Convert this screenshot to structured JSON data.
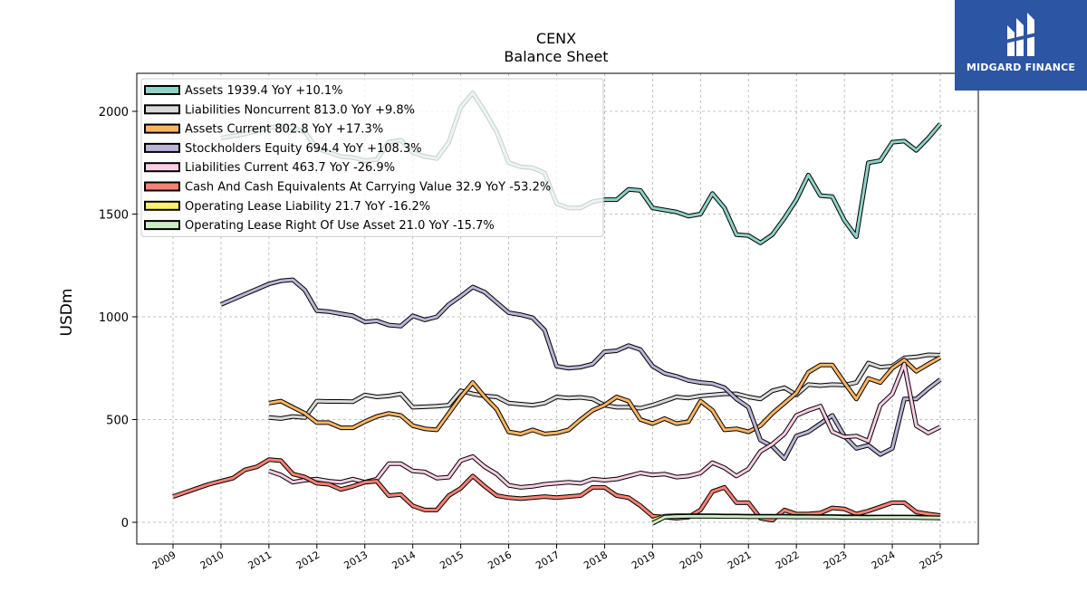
{
  "brand": {
    "name": "MIDGARD FINANCE",
    "bg_color": "#2c55a4"
  },
  "chart_data": {
    "type": "line",
    "title": "CENX",
    "subtitle": "Balance  Sheet",
    "ylabel": "USDm",
    "xlabel": "",
    "ylim": [
      -100,
      2200
    ],
    "xlim": [
      2008.25,
      2025.8
    ],
    "yticks": [
      0,
      500,
      1000,
      1500,
      2000
    ],
    "xticks": [
      2009,
      2010,
      2011,
      2012,
      2013,
      2014,
      2015,
      2016,
      2017,
      2018,
      2019,
      2020,
      2021,
      2022,
      2023,
      2024,
      2025
    ],
    "grid": true,
    "legend_position": "top-left",
    "series": [
      {
        "name": "Assets",
        "label": "Assets  1939.4 YoY +10.1%",
        "color": "#8dd3c7",
        "x": [
          2010.0,
          2010.25,
          2010.5,
          2010.75,
          2011.0,
          2011.25,
          2011.5,
          2011.75,
          2012.0,
          2012.25,
          2012.5,
          2012.75,
          2013.0,
          2013.25,
          2013.5,
          2013.75,
          2014.0,
          2014.25,
          2014.5,
          2014.75,
          2015.0,
          2015.25,
          2015.5,
          2015.75,
          2016.0,
          2016.25,
          2016.5,
          2016.75,
          2017.0,
          2017.25,
          2017.5,
          2017.75,
          2018.0,
          2018.25,
          2018.5,
          2018.75,
          2019.0,
          2019.25,
          2019.5,
          2019.75,
          2020.0,
          2020.25,
          2020.5,
          2020.75,
          2021.0,
          2021.25,
          2021.5,
          2021.75,
          2022.0,
          2022.25,
          2022.5,
          2022.75,
          2023.0,
          2023.25,
          2023.5,
          2023.75,
          2024.0,
          2024.25,
          2024.5,
          2024.75,
          2025.0
        ],
        "y": [
          1870,
          1880,
          1890,
          1905,
          1920,
          1930,
          1920,
          1900,
          1820,
          1800,
          1780,
          1775,
          1760,
          1765,
          1850,
          1860,
          1800,
          1780,
          1770,
          1850,
          2020,
          2090,
          2000,
          1900,
          1750,
          1730,
          1725,
          1700,
          1550,
          1530,
          1530,
          1560,
          1570,
          1570,
          1620,
          1615,
          1530,
          1520,
          1510,
          1490,
          1500,
          1600,
          1530,
          1400,
          1395,
          1360,
          1400,
          1480,
          1570,
          1690,
          1590,
          1585,
          1470,
          1390,
          1750,
          1760,
          1850,
          1855,
          1810,
          1870,
          1939.4
        ]
      },
      {
        "name": "Liabilities Noncurrent",
        "label": "Liabilities Noncurrent  813.0 YoY +9.8%",
        "color": "#d9d9d9",
        "x": [
          2011.0,
          2011.25,
          2011.5,
          2011.75,
          2012.0,
          2012.25,
          2012.5,
          2012.75,
          2013.0,
          2013.25,
          2013.5,
          2013.75,
          2014.0,
          2014.25,
          2014.5,
          2014.75,
          2015.0,
          2015.25,
          2015.5,
          2015.75,
          2016.0,
          2016.25,
          2016.5,
          2016.75,
          2017.0,
          2017.25,
          2017.5,
          2017.75,
          2018.0,
          2018.25,
          2018.5,
          2018.75,
          2019.0,
          2019.25,
          2019.5,
          2019.75,
          2020.0,
          2020.25,
          2020.5,
          2020.75,
          2021.0,
          2021.25,
          2021.5,
          2021.75,
          2022.0,
          2022.25,
          2022.5,
          2022.75,
          2023.0,
          2023.25,
          2023.5,
          2023.75,
          2024.0,
          2024.25,
          2024.5,
          2024.75,
          2025.0
        ],
        "y": [
          510,
          505,
          515,
          510,
          590,
          588,
          588,
          587,
          620,
          610,
          615,
          625,
          560,
          562,
          565,
          570,
          640,
          625,
          615,
          610,
          580,
          575,
          570,
          580,
          610,
          605,
          608,
          600,
          570,
          560,
          560,
          555,
          570,
          590,
          610,
          605,
          615,
          620,
          625,
          625,
          610,
          600,
          640,
          655,
          620,
          670,
          665,
          670,
          668,
          680,
          775,
          755,
          760,
          800,
          805,
          815,
          813
        ]
      },
      {
        "name": "Assets Current",
        "label": "Assets Current  802.8 YoY +17.3%",
        "color": "#fdb462",
        "x": [
          2011.0,
          2011.25,
          2011.5,
          2011.75,
          2012.0,
          2012.25,
          2012.5,
          2012.75,
          2013.0,
          2013.25,
          2013.5,
          2013.75,
          2014.0,
          2014.25,
          2014.5,
          2014.75,
          2015.0,
          2015.25,
          2015.5,
          2015.75,
          2016.0,
          2016.25,
          2016.5,
          2016.75,
          2017.0,
          2017.25,
          2017.5,
          2017.75,
          2018.0,
          2018.25,
          2018.5,
          2018.75,
          2019.0,
          2019.25,
          2019.5,
          2019.75,
          2020.0,
          2020.25,
          2020.5,
          2020.75,
          2021.0,
          2021.25,
          2021.5,
          2021.75,
          2022.0,
          2022.25,
          2022.5,
          2022.75,
          2023.0,
          2023.25,
          2023.5,
          2023.75,
          2024.0,
          2024.25,
          2024.5,
          2024.75,
          2025.0
        ],
        "y": [
          580,
          590,
          560,
          530,
          485,
          485,
          460,
          460,
          490,
          515,
          530,
          520,
          470,
          455,
          450,
          530,
          610,
          680,
          610,
          550,
          440,
          430,
          450,
          430,
          435,
          450,
          500,
          545,
          570,
          610,
          590,
          500,
          480,
          505,
          480,
          490,
          590,
          545,
          450,
          455,
          440,
          470,
          530,
          580,
          630,
          730,
          765,
          765,
          680,
          600,
          700,
          680,
          750,
          790,
          735,
          770,
          802.8
        ]
      },
      {
        "name": "Stockholders Equity",
        "label": "Stockholders Equity  694.4 YoY +108.3%",
        "color": "#bcb4d8",
        "x": [
          2010.0,
          2010.25,
          2010.5,
          2010.75,
          2011.0,
          2011.25,
          2011.5,
          2011.75,
          2012.0,
          2012.25,
          2012.5,
          2012.75,
          2013.0,
          2013.25,
          2013.5,
          2013.75,
          2014.0,
          2014.25,
          2014.5,
          2014.75,
          2015.0,
          2015.25,
          2015.5,
          2015.75,
          2016.0,
          2016.25,
          2016.5,
          2016.75,
          2017.0,
          2017.25,
          2017.5,
          2017.75,
          2018.0,
          2018.25,
          2018.5,
          2018.75,
          2019.0,
          2019.25,
          2019.5,
          2019.75,
          2020.0,
          2020.25,
          2020.5,
          2020.75,
          2021.0,
          2021.25,
          2021.5,
          2021.75,
          2022.0,
          2022.25,
          2022.5,
          2022.75,
          2023.0,
          2023.25,
          2023.5,
          2023.75,
          2024.0,
          2024.25,
          2024.5,
          2024.75,
          2025.0
        ],
        "y": [
          1060,
          1085,
          1110,
          1135,
          1160,
          1175,
          1180,
          1130,
          1030,
          1025,
          1015,
          1005,
          975,
          980,
          960,
          955,
          1005,
          985,
          1000,
          1060,
          1100,
          1145,
          1120,
          1070,
          1020,
          1010,
          995,
          935,
          760,
          750,
          755,
          770,
          830,
          835,
          860,
          840,
          760,
          725,
          710,
          690,
          680,
          675,
          655,
          600,
          560,
          400,
          370,
          310,
          420,
          440,
          480,
          520,
          420,
          360,
          375,
          330,
          360,
          600,
          600,
          650,
          694.4
        ]
      },
      {
        "name": "Liabilities Current",
        "label": "Liabilities Current  463.7 YoY -26.9%",
        "color": "#fccde5",
        "x": [
          2011.0,
          2011.25,
          2011.5,
          2011.75,
          2012.0,
          2012.25,
          2012.5,
          2012.75,
          2013.0,
          2013.25,
          2013.5,
          2013.75,
          2014.0,
          2014.25,
          2014.5,
          2014.75,
          2015.0,
          2015.25,
          2015.5,
          2015.75,
          2016.0,
          2016.25,
          2016.5,
          2016.75,
          2017.0,
          2017.25,
          2017.5,
          2017.75,
          2018.0,
          2018.25,
          2018.5,
          2018.75,
          2019.0,
          2019.25,
          2019.5,
          2019.75,
          2020.0,
          2020.25,
          2020.5,
          2020.75,
          2021.0,
          2021.25,
          2021.5,
          2021.75,
          2022.0,
          2022.25,
          2022.5,
          2022.75,
          2023.0,
          2023.25,
          2023.5,
          2023.75,
          2024.0,
          2024.25,
          2024.5,
          2024.75,
          2025.0
        ],
        "y": [
          250,
          230,
          195,
          205,
          210,
          200,
          195,
          210,
          195,
          210,
          285,
          285,
          250,
          245,
          215,
          220,
          300,
          320,
          270,
          235,
          180,
          170,
          175,
          185,
          190,
          195,
          190,
          210,
          205,
          210,
          225,
          240,
          230,
          235,
          220,
          225,
          240,
          290,
          265,
          225,
          260,
          345,
          380,
          430,
          520,
          545,
          565,
          440,
          415,
          420,
          395,
          570,
          625,
          770,
          470,
          435,
          463.7
        ]
      },
      {
        "name": "Cash And Cash Equivalents At Carrying Value",
        "label": "Cash And Cash Equivalents At Carrying Value  32.9 YoY -53.2%",
        "color": "#fb8072",
        "x": [
          2009.0,
          2009.25,
          2009.5,
          2009.75,
          2010.0,
          2010.25,
          2010.5,
          2010.75,
          2011.0,
          2011.25,
          2011.5,
          2011.75,
          2012.0,
          2012.25,
          2012.5,
          2012.75,
          2013.0,
          2013.25,
          2013.5,
          2013.75,
          2014.0,
          2014.25,
          2014.5,
          2014.75,
          2015.0,
          2015.25,
          2015.5,
          2015.75,
          2016.0,
          2016.25,
          2016.5,
          2016.75,
          2017.0,
          2017.25,
          2017.5,
          2017.75,
          2018.0,
          2018.25,
          2018.5,
          2018.75,
          2019.0,
          2019.25,
          2019.5,
          2019.75,
          2020.0,
          2020.25,
          2020.5,
          2020.75,
          2021.0,
          2021.25,
          2021.5,
          2021.75,
          2022.0,
          2022.25,
          2022.5,
          2022.75,
          2023.0,
          2023.25,
          2023.5,
          2023.75,
          2024.0,
          2024.25,
          2024.5,
          2024.75,
          2025.0
        ],
        "y": [
          125,
          145,
          165,
          185,
          200,
          215,
          255,
          270,
          305,
          300,
          235,
          220,
          190,
          185,
          160,
          175,
          195,
          200,
          130,
          135,
          80,
          60,
          60,
          130,
          165,
          225,
          175,
          130,
          120,
          115,
          120,
          125,
          120,
          125,
          130,
          170,
          170,
          130,
          120,
          80,
          30,
          25,
          20,
          25,
          60,
          150,
          170,
          95,
          95,
          20,
          10,
          60,
          40,
          40,
          45,
          70,
          65,
          40,
          55,
          75,
          95,
          95,
          50,
          40,
          32.9
        ]
      },
      {
        "name": "Operating Lease Liability",
        "label": "Operating Lease Liability  21.7 YoY -16.2%",
        "color": "#ffed6f",
        "x": [
          2019.0,
          2019.25,
          2019.5,
          2019.75,
          2020.0,
          2020.25,
          2020.5,
          2020.75,
          2021.0,
          2021.25,
          2021.5,
          2021.75,
          2022.0,
          2022.25,
          2022.5,
          2022.75,
          2023.0,
          2023.25,
          2023.5,
          2023.75,
          2024.0,
          2024.25,
          2024.5,
          2024.75,
          2025.0
        ],
        "y": [
          10,
          30,
          32,
          32,
          32,
          32,
          31,
          31,
          30,
          30,
          30,
          30,
          29,
          28,
          28,
          28,
          27,
          27,
          26,
          26,
          26,
          26,
          25,
          23,
          21.7
        ]
      },
      {
        "name": "Operating Lease Right Of Use Asset",
        "label": "Operating Lease Right Of Use Asset  21.0 YoY -15.7%",
        "color": "#ccebc5",
        "x": [
          2019.0,
          2019.25,
          2019.5,
          2019.75,
          2020.0,
          2020.25,
          2020.5,
          2020.75,
          2021.0,
          2021.25,
          2021.5,
          2021.75,
          2022.0,
          2022.25,
          2022.5,
          2022.75,
          2023.0,
          2023.25,
          2023.5,
          2023.75,
          2024.0,
          2024.25,
          2024.5,
          2024.75,
          2025.0
        ],
        "y": [
          -5,
          25,
          28,
          29,
          29,
          29,
          28,
          28,
          27,
          27,
          27,
          27,
          26,
          26,
          25,
          25,
          24,
          24,
          23,
          24,
          24,
          24,
          23,
          22,
          21.0
        ]
      }
    ]
  }
}
